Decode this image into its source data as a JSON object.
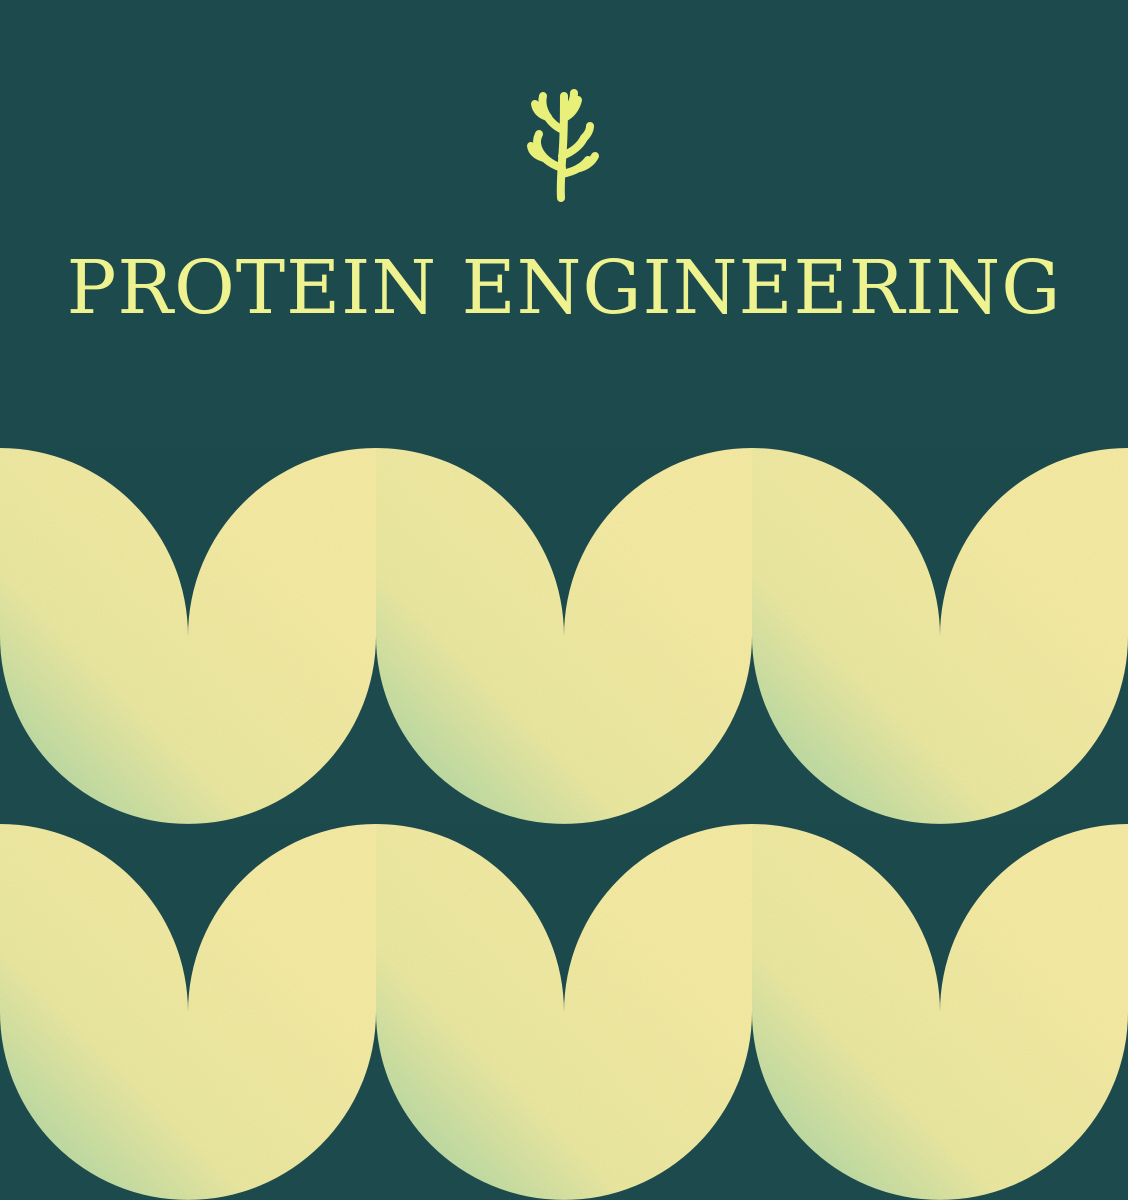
{
  "title": "PROTEIN ENGINEERING",
  "logo_icon": "coral-branch-icon",
  "colors": {
    "background": "#1d4b4d",
    "accent": "#eef28f",
    "shape_light": "#f4eba3",
    "shape_shadow": "#9ed2a6"
  }
}
